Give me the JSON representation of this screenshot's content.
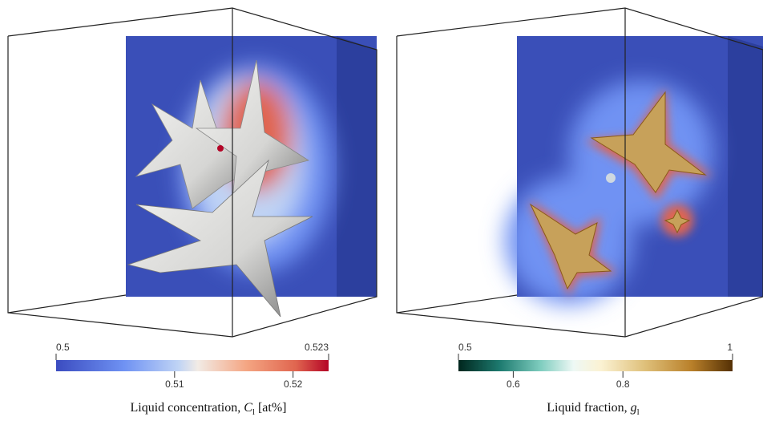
{
  "panels": [
    {
      "colorbar": {
        "range": [
          0.5,
          0.523
        ],
        "ticks": [
          0.51,
          0.52
        ]
      },
      "caption": {
        "text": "Liquid concentration,",
        "symbol": "C",
        "subscript": "l",
        "unit": "[at%]"
      }
    },
    {
      "colorbar": {
        "range": [
          0.5,
          1
        ],
        "ticks": [
          0.6,
          0.8
        ]
      },
      "caption": {
        "text": "Liquid fraction,",
        "symbol": "g",
        "subscript": "l"
      }
    }
  ]
}
